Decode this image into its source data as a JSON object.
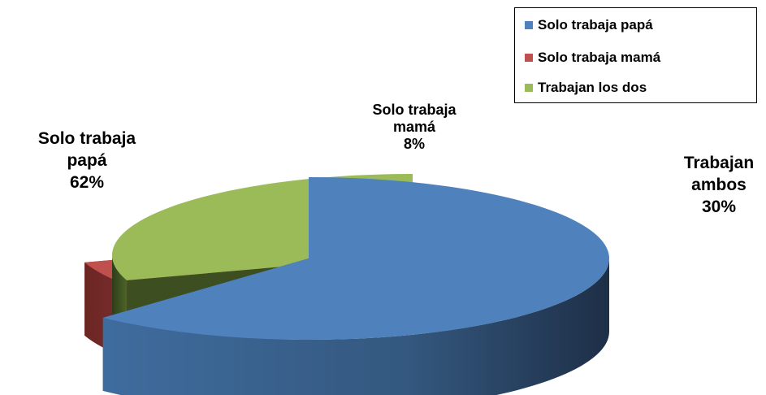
{
  "chart_data": {
    "type": "pie",
    "title": "",
    "categories": [
      "Solo trabaja papá",
      "Solo trabaja mamá",
      "Trabajan los dos"
    ],
    "values": [
      62,
      8,
      30
    ],
    "colors": [
      "#4f81bd",
      "#c0504d",
      "#9bbb59"
    ],
    "legend": {
      "placement": "top-right",
      "entries": [
        "Solo trabaja papá",
        "Solo trabaja mamá",
        "Trabajan los dos"
      ]
    },
    "data_labels": [
      {
        "line1": "Solo trabaja",
        "line2": "papá",
        "value": "62%"
      },
      {
        "line1": "Solo trabaja",
        "line2": "mamá",
        "value": "8%"
      },
      {
        "line1": "Trabajan",
        "line2": "ambos",
        "value": "30%"
      }
    ]
  }
}
